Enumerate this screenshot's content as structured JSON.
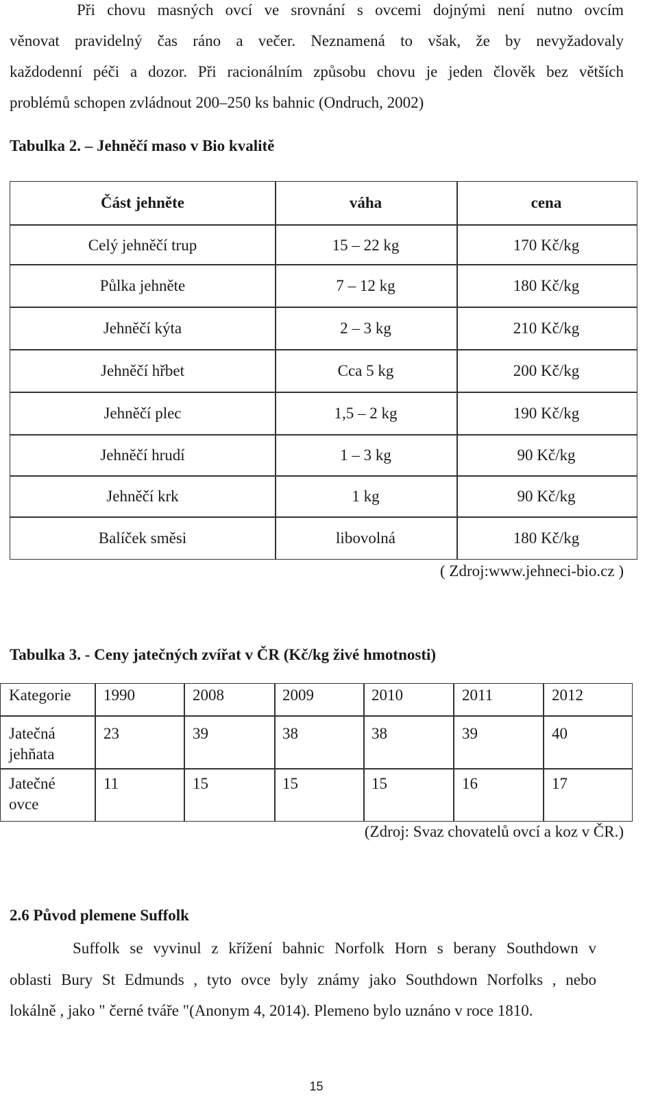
{
  "intro": {
    "lines": [
      "Při chovu masných ovcí ve srovnání s ovcemi dojnými není nutno ovcím",
      "věnovat pravidelný čas ráno a večer. Neznamená to však, že by nevyžadovaly",
      "každodenní péči a dozor. Při racionálním způsobu chovu je jeden člověk bez větších",
      "problémů schopen zvládnout 200–250 ks bahnic (Ondruch, 2002)"
    ]
  },
  "table2": {
    "caption": "Tabulka 2. – Jehněčí maso v Bio kvalitě",
    "headers": [
      "Část jehněte",
      "váha",
      "cena"
    ],
    "rows": [
      [
        "Celý jehněčí trup",
        "15 – 22 kg",
        "170 Kč/kg"
      ],
      [
        "Půlka jehněte",
        "7 – 12 kg",
        "180 Kč/kg"
      ],
      [
        "Jehněčí kýta",
        "2 – 3 kg",
        "210 Kč/kg"
      ],
      [
        "Jehněčí hřbet",
        "Cca 5 kg",
        "200 Kč/kg"
      ],
      [
        "Jehněčí plec",
        "1,5 – 2 kg",
        "190 Kč/kg"
      ],
      [
        "Jehněčí hrudí",
        "1 – 3 kg",
        "90 Kč/kg"
      ],
      [
        "Jehněčí krk",
        "1 kg",
        "90 Kč/kg"
      ],
      [
        "Balíček směsi",
        "libovolná",
        "180 Kč/kg"
      ]
    ],
    "source": "( Zdroj:www.jehneci-bio.cz )"
  },
  "table3": {
    "caption": "Tabulka 3. - Ceny jatečných zvířat v ČR (Kč/kg živé hmotnosti)",
    "headers": [
      "Kategorie",
      "1990",
      "2008",
      "2009",
      "2010",
      "2011",
      "2012"
    ],
    "rows": [
      {
        "label": [
          "Jatečná",
          "jehňata"
        ],
        "values": [
          "23",
          "39",
          "38",
          "38",
          "39",
          "40"
        ]
      },
      {
        "label": [
          "Jatečné",
          "ovce"
        ],
        "values": [
          "11",
          "15",
          "15",
          "15",
          "16",
          "17"
        ]
      }
    ],
    "source": "(Zdroj: Svaz chovatelů ovcí a koz v ČR.)"
  },
  "section": {
    "heading": "2.6 Původ plemene Suffolk",
    "lines": [
      "Suffolk se vyvinul z křížení bahnic Norfolk Horn  s berany Southdown v",
      "oblasti Bury St Edmunds , tyto ovce byly známy jako Southdown Norfolks , nebo",
      "lokálně , jako \" černé tváře \"(Anonym 4, 2014). Plemeno bylo uznáno v roce 1810."
    ]
  },
  "page_number": "15"
}
